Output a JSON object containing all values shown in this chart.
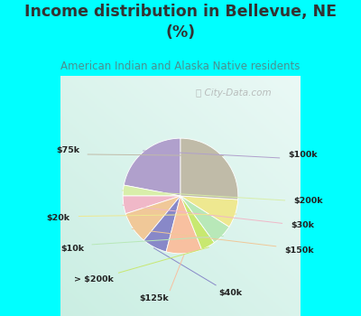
{
  "title": "Income distribution in Bellevue, NE\n(%)",
  "subtitle": "American Indian and Alaska Native residents",
  "title_color": "#333333",
  "subtitle_color": "#4a9090",
  "bg_top_color": "#00FFFF",
  "chart_bg_color": "#e0f2ec",
  "labels": [
    "$100k",
    "$200k",
    "$30k",
    "$150k",
    "$40k",
    "$125k",
    "> $200k",
    "$10k",
    "$20k",
    "$75k"
  ],
  "values": [
    22,
    3,
    5,
    9,
    7,
    10,
    4,
    6,
    8,
    26
  ],
  "colors": [
    "#b0a0cc",
    "#d8eeaa",
    "#f0b8c8",
    "#f0c898",
    "#8888c8",
    "#f8c0a0",
    "#c8e870",
    "#b8e8b8",
    "#eee890",
    "#c0bba8"
  ],
  "startangle": 90,
  "label_positions": [
    [
      "$100k",
      1.12,
      0.48
    ],
    [
      "$200k",
      1.18,
      0.0
    ],
    [
      "$30k",
      1.15,
      -0.26
    ],
    [
      "$150k",
      1.08,
      -0.52
    ],
    [
      "$40k",
      0.4,
      -0.96
    ],
    [
      "$125k",
      -0.12,
      -1.02
    ],
    [
      "> $200k",
      -0.7,
      -0.82
    ],
    [
      "$10k",
      -1.0,
      -0.5
    ],
    [
      "$20k",
      -1.15,
      -0.18
    ],
    [
      "$75k",
      -1.05,
      0.52
    ]
  ],
  "watermark": "City-Data.com"
}
